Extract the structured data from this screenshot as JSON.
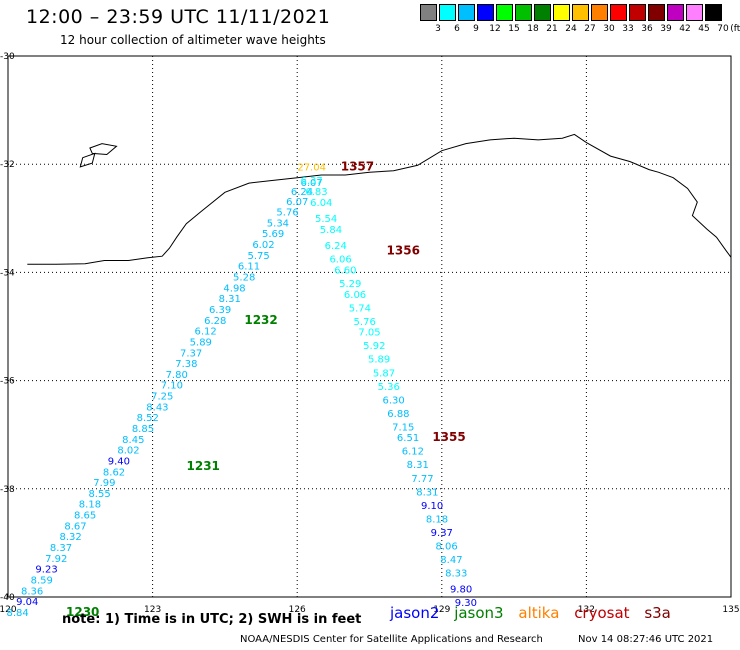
{
  "title": "12:00 – 23:59 UTC 11/11/2021",
  "subtitle": "12 hour collection of altimeter wave heights",
  "color_scale": {
    "unit": "(ft)",
    "colors": [
      "#808080",
      "#00ffff",
      "#00bfff",
      "#0000ff",
      "#00ff00",
      "#00c000",
      "#008000",
      "#ffff00",
      "#ffc000",
      "#ff8000",
      "#ff0000",
      "#c00000",
      "#800000",
      "#c000c0",
      "#ff80ff",
      "#000000"
    ],
    "labels": [
      "3",
      "6",
      "9",
      "12",
      "15",
      "18",
      "21",
      "24",
      "27",
      "30",
      "33",
      "36",
      "39",
      "42",
      "45",
      "70"
    ]
  },
  "axes": {
    "lon_ticks": [
      120,
      123,
      126,
      129,
      132,
      135
    ],
    "lat_ticks": [
      -30,
      -32,
      -34,
      -36,
      -38,
      -40
    ],
    "lon_labels": [
      "120",
      "123",
      "126",
      "129",
      "132",
      "135"
    ],
    "lat_labels": [
      "-30",
      "-32",
      "-34",
      "-36",
      "-38",
      "-40"
    ]
  },
  "coastline": [
    [
      120.4,
      -33.85
    ],
    [
      121.0,
      -33.85
    ],
    [
      121.6,
      -33.84
    ],
    [
      122.0,
      -33.78
    ],
    [
      122.5,
      -33.78
    ],
    [
      122.9,
      -33.73
    ],
    [
      123.2,
      -33.7
    ],
    [
      123.35,
      -33.55
    ],
    [
      123.5,
      -33.35
    ],
    [
      123.7,
      -33.1
    ],
    [
      124.0,
      -32.88
    ],
    [
      124.5,
      -32.52
    ],
    [
      125.0,
      -32.35
    ],
    [
      125.5,
      -32.3
    ],
    [
      126.0,
      -32.25
    ],
    [
      126.5,
      -32.2
    ],
    [
      127.0,
      -32.2
    ],
    [
      127.5,
      -32.15
    ],
    [
      128.0,
      -32.12
    ],
    [
      128.5,
      -32.02
    ],
    [
      129.0,
      -31.75
    ],
    [
      129.5,
      -31.62
    ],
    [
      130.0,
      -31.55
    ],
    [
      130.5,
      -31.52
    ],
    [
      131.0,
      -31.55
    ],
    [
      131.5,
      -31.52
    ],
    [
      131.75,
      -31.45
    ],
    [
      132.0,
      -31.6
    ],
    [
      132.5,
      -31.85
    ],
    [
      132.9,
      -31.95
    ],
    [
      133.3,
      -32.1
    ],
    [
      133.5,
      -32.15
    ],
    [
      133.8,
      -32.25
    ],
    [
      134.1,
      -32.45
    ],
    [
      134.3,
      -32.7
    ],
    [
      134.2,
      -32.95
    ],
    [
      134.5,
      -33.2
    ],
    [
      134.7,
      -33.35
    ],
    [
      134.9,
      -33.6
    ],
    [
      135.0,
      -33.72
    ]
  ],
  "islands": [
    [
      [
        121.7,
        -31.7
      ],
      [
        121.95,
        -31.62
      ],
      [
        122.25,
        -31.67
      ],
      [
        122.05,
        -31.82
      ],
      [
        121.75,
        -31.8
      ],
      [
        121.7,
        -31.7
      ]
    ],
    [
      [
        121.55,
        -31.88
      ],
      [
        121.8,
        -31.8
      ],
      [
        121.75,
        -31.98
      ],
      [
        121.5,
        -32.05
      ],
      [
        121.55,
        -31.88
      ]
    ]
  ],
  "swaths": [
    {
      "mission": "jason3",
      "time_label": "1232",
      "label_lon": 125.25,
      "label_lat": -34.95,
      "points": [
        {
          "lon": 126.3,
          "lat": -32.4,
          "swh": "6.07",
          "c": "#00bfff"
        },
        {
          "lon": 126.1,
          "lat": -32.57,
          "swh": "6.24",
          "c": "#00bfff"
        },
        {
          "lon": 126.0,
          "lat": -32.75,
          "swh": "6.07",
          "c": "#00bfff"
        },
        {
          "lon": 125.8,
          "lat": -32.95,
          "swh": "5.76",
          "c": "#00bfff"
        },
        {
          "lon": 125.6,
          "lat": -33.15,
          "swh": "5.34",
          "c": "#00bfff"
        },
        {
          "lon": 125.5,
          "lat": -33.35,
          "swh": "5.69",
          "c": "#00bfff"
        },
        {
          "lon": 125.3,
          "lat": -33.55,
          "swh": "6.02",
          "c": "#00bfff"
        },
        {
          "lon": 125.2,
          "lat": -33.75,
          "swh": "5.75",
          "c": "#00bfff"
        },
        {
          "lon": 125.0,
          "lat": -33.95,
          "swh": "6.11",
          "c": "#00bfff"
        },
        {
          "lon": 124.9,
          "lat": -34.15,
          "swh": "5.28",
          "c": "#00bfff"
        },
        {
          "lon": 124.7,
          "lat": -34.35,
          "swh": "4.98",
          "c": "#00bfff"
        },
        {
          "lon": 124.6,
          "lat": -34.55,
          "swh": "8.31",
          "c": "#00bfff"
        },
        {
          "lon": 124.4,
          "lat": -34.75,
          "swh": "6.39",
          "c": "#00bfff"
        },
        {
          "lon": 124.3,
          "lat": -34.95,
          "swh": "6.28",
          "c": "#00bfff"
        },
        {
          "lon": 124.1,
          "lat": -35.15,
          "swh": "6.12",
          "c": "#00bfff"
        },
        {
          "lon": 124.0,
          "lat": -35.35,
          "swh": "5.89",
          "c": "#00bfff"
        },
        {
          "lon": 123.8,
          "lat": -35.55,
          "swh": "7.37",
          "c": "#00bfff"
        },
        {
          "lon": 123.7,
          "lat": -35.75,
          "swh": "7.38",
          "c": "#00bfff"
        },
        {
          "lon": 123.5,
          "lat": -35.95,
          "swh": "7.80",
          "c": "#00bfff"
        },
        {
          "lon": 123.4,
          "lat": -36.15,
          "swh": "7.10",
          "c": "#00bfff"
        },
        {
          "lon": 123.2,
          "lat": -36.35,
          "swh": "7.25",
          "c": "#00bfff"
        },
        {
          "lon": 123.1,
          "lat": -36.55,
          "swh": "8.43",
          "c": "#00bfff"
        }
      ]
    },
    {
      "mission": "jason3",
      "time_label": "1231",
      "label_lon": 124.05,
      "label_lat": -37.65,
      "points": [
        {
          "lon": 122.9,
          "lat": -36.75,
          "swh": "8.52",
          "c": "#00bfff"
        },
        {
          "lon": 122.8,
          "lat": -36.95,
          "swh": "8.85",
          "c": "#00bfff"
        },
        {
          "lon": 122.6,
          "lat": -37.15,
          "swh": "8.45",
          "c": "#00bfff"
        },
        {
          "lon": 122.5,
          "lat": -37.35,
          "swh": "8.02",
          "c": "#00bfff"
        },
        {
          "lon": 122.3,
          "lat": -37.55,
          "swh": "9.40",
          "c": "#0000ff"
        },
        {
          "lon": 122.2,
          "lat": -37.75,
          "swh": "8.62",
          "c": "#00bfff"
        },
        {
          "lon": 122.0,
          "lat": -37.95,
          "swh": "7.99",
          "c": "#00bfff"
        },
        {
          "lon": 121.9,
          "lat": -38.15,
          "swh": "8.55",
          "c": "#00bfff"
        },
        {
          "lon": 121.7,
          "lat": -38.35,
          "swh": "8.18",
          "c": "#00bfff"
        },
        {
          "lon": 121.6,
          "lat": -38.55,
          "swh": "8.65",
          "c": "#00bfff"
        },
        {
          "lon": 121.4,
          "lat": -38.75,
          "swh": "8.67",
          "c": "#00bfff"
        },
        {
          "lon": 121.3,
          "lat": -38.95,
          "swh": "8.32",
          "c": "#00bfff"
        },
        {
          "lon": 121.1,
          "lat": -39.15,
          "swh": "8.37",
          "c": "#00bfff"
        },
        {
          "lon": 121.0,
          "lat": -39.35,
          "swh": "7.92",
          "c": "#00bfff"
        },
        {
          "lon": 120.8,
          "lat": -39.55,
          "swh": "9.23",
          "c": "#0000ff"
        },
        {
          "lon": 120.7,
          "lat": -39.75,
          "swh": "8.59",
          "c": "#00bfff"
        },
        {
          "lon": 120.5,
          "lat": -39.95,
          "swh": "8.36",
          "c": "#00bfff"
        },
        {
          "lon": 120.4,
          "lat": -40.15,
          "swh": "9.04",
          "c": "#0000ff"
        },
        {
          "lon": 120.2,
          "lat": -40.35,
          "swh": "8.84",
          "c": "#00bfff"
        }
      ]
    },
    {
      "mission": "jason3",
      "time_label": "1230",
      "label_lon": 121.55,
      "label_lat": -40.35,
      "points": []
    },
    {
      "mission": "cryosat",
      "time_label": "1357",
      "label_lon": 127.25,
      "label_lat": -32.12,
      "points": [
        {
          "lon": 126.3,
          "lat": -32.37,
          "swh": "6.37",
          "c": "#00ffff"
        },
        {
          "lon": 126.4,
          "lat": -32.57,
          "swh": "6.83",
          "c": "#00ffff"
        },
        {
          "lon": 126.5,
          "lat": -32.77,
          "swh": "6.04",
          "c": "#00ffff"
        },
        {
          "lon": 126.6,
          "lat": -33.07,
          "swh": "5.54",
          "c": "#00ffff"
        },
        {
          "lon": 126.7,
          "lat": -33.27,
          "swh": "5.84",
          "c": "#00ffff"
        }
      ]
    },
    {
      "mission": "cryosat",
      "time_label": "1356",
      "label_lon": 128.2,
      "label_lat": -33.67,
      "points": [
        {
          "lon": 126.8,
          "lat": -33.57,
          "swh": "6.24",
          "c": "#00ffff"
        },
        {
          "lon": 126.9,
          "lat": -33.82,
          "swh": "6.06",
          "c": "#00ffff"
        },
        {
          "lon": 127.0,
          "lat": -34.02,
          "swh": "6.60",
          "c": "#00ffff"
        },
        {
          "lon": 127.1,
          "lat": -34.27,
          "swh": "5.29",
          "c": "#00ffff"
        },
        {
          "lon": 127.2,
          "lat": -34.47,
          "swh": "6.06",
          "c": "#00ffff"
        },
        {
          "lon": 127.3,
          "lat": -34.72,
          "swh": "5.74",
          "c": "#00ffff"
        },
        {
          "lon": 127.4,
          "lat": -34.97,
          "swh": "5.76",
          "c": "#00ffff"
        },
        {
          "lon": 127.5,
          "lat": -35.17,
          "swh": "7.05",
          "c": "#00ffff"
        },
        {
          "lon": 127.6,
          "lat": -35.42,
          "swh": "5.92",
          "c": "#00ffff"
        },
        {
          "lon": 127.7,
          "lat": -35.67,
          "swh": "5.89",
          "c": "#00ffff"
        },
        {
          "lon": 127.8,
          "lat": -35.92,
          "swh": "5.87",
          "c": "#00ffff"
        },
        {
          "lon": 127.9,
          "lat": -36.17,
          "swh": "5.36",
          "c": "#00ffff"
        },
        {
          "lon": 128.0,
          "lat": -36.42,
          "swh": "6.30",
          "c": "#00bfff"
        },
        {
          "lon": 128.1,
          "lat": -36.67,
          "swh": "6.88",
          "c": "#00bfff"
        },
        {
          "lon": 128.2,
          "lat": -36.92,
          "swh": "7.15",
          "c": "#00bfff"
        },
        {
          "lon": 128.3,
          "lat": -37.12,
          "swh": "6.51",
          "c": "#00bfff"
        }
      ]
    },
    {
      "mission": "cryosat",
      "time_label": "1355",
      "label_lon": 129.15,
      "label_lat": -37.12,
      "points": [
        {
          "lon": 128.4,
          "lat": -37.37,
          "swh": "6.12",
          "c": "#00bfff"
        },
        {
          "lon": 128.5,
          "lat": -37.62,
          "swh": "8.31",
          "c": "#00bfff"
        },
        {
          "lon": 128.6,
          "lat": -37.87,
          "swh": "7.77",
          "c": "#00bfff"
        },
        {
          "lon": 128.7,
          "lat": -38.12,
          "swh": "8.31",
          "c": "#00bfff"
        },
        {
          "lon": 128.8,
          "lat": -38.37,
          "swh": "9.10",
          "c": "#0000ff"
        },
        {
          "lon": 128.9,
          "lat": -38.62,
          "swh": "8.18",
          "c": "#00bfff"
        },
        {
          "lon": 129.0,
          "lat": -38.87,
          "swh": "9.37",
          "c": "#0000ff"
        },
        {
          "lon": 129.1,
          "lat": -39.12,
          "swh": "8.06",
          "c": "#00bfff"
        },
        {
          "lon": 129.2,
          "lat": -39.37,
          "swh": "8.47",
          "c": "#00bfff"
        },
        {
          "lon": 129.3,
          "lat": -39.62,
          "swh": "8.33",
          "c": "#00bfff"
        },
        {
          "lon": 129.4,
          "lat": -39.92,
          "swh": "9.80",
          "c": "#0000ff"
        },
        {
          "lon": 129.5,
          "lat": -40.17,
          "swh": "9.30",
          "c": "#0000ff"
        }
      ]
    }
  ],
  "extra_labels": [
    {
      "text": "27.04",
      "lon": 126.3,
      "lat": -32.12,
      "c": "#ffc000"
    }
  ],
  "mission_colors": {
    "jason2": "#0000ff",
    "jason3": "#008000",
    "altika": "#ff8000",
    "cryosat": "#c00000",
    "s3a": "#800000"
  },
  "time_label_colors": {
    "jason3": "#008000",
    "cryosat": "#800000"
  },
  "footer": {
    "note": "note:  1) Time is in UTC; 2) SWH is in feet",
    "legend": {
      "jason2": "jason2",
      "jason3": "jason3",
      "altika": "altika",
      "cryosat": "cryosat",
      "s3a": "s3a"
    },
    "credit": "NOAA/NESDIS Center for Satellite Applications and Research",
    "timestamp": "Nov 14 08:27:46 UTC 2021"
  }
}
